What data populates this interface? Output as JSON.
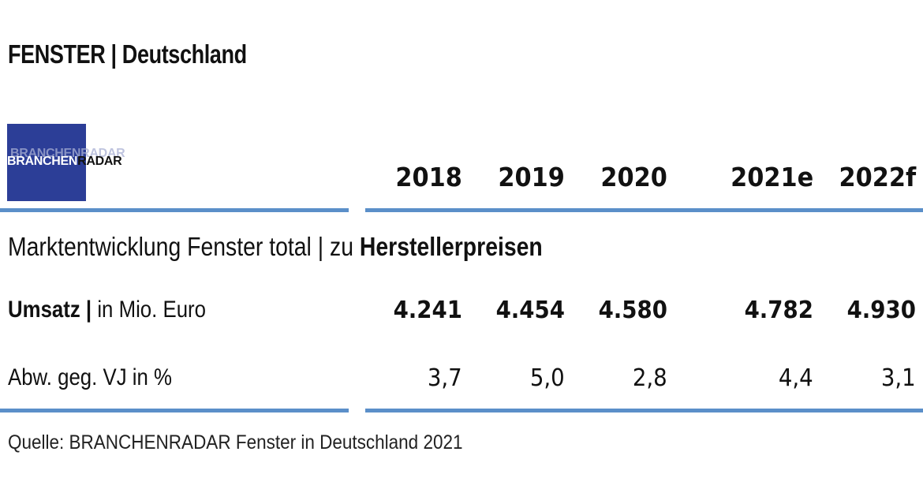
{
  "header": {
    "title_main": "FENSTER",
    "title_separator": " | ",
    "title_sub": "Deutschland"
  },
  "logo": {
    "part1": "BRANCHEN",
    "part2": "RADAR",
    "shadow_text": "BRANCHENRADAR",
    "bg_color": "#2c3e97"
  },
  "table": {
    "years": [
      "2018",
      "2019",
      "2020",
      "2021e",
      "2022f"
    ],
    "section_label_plain": "Marktentwicklung Fenster total | zu ",
    "section_label_bold": "Herstellerpreisen",
    "rows": [
      {
        "label_bold": "Umsatz |",
        "label_rest": " in Mio. Euro",
        "values": [
          "4.241",
          "4.454",
          "4.580",
          "4.782",
          "4.930"
        ]
      },
      {
        "label_bold": "",
        "label_rest": "Abw. geg. VJ in %",
        "values": [
          "3,7",
          "5,0",
          "2,8",
          "4,4",
          "3,1"
        ]
      }
    ]
  },
  "source": "Quelle: BRANCHENRADAR Fenster in Deutschland 2021",
  "colors": {
    "rule": "#5b8fc9",
    "text": "#111111"
  }
}
